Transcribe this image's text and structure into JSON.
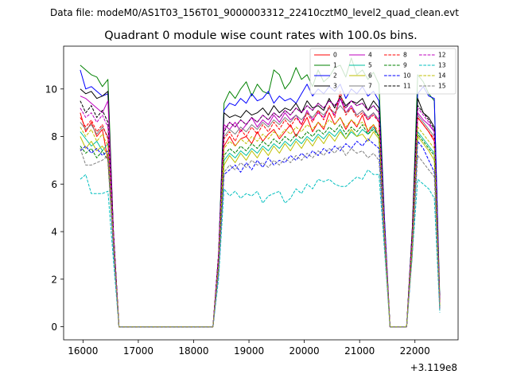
{
  "suptitle": "Data file: modeM0/AS1T03_156T01_9000003312_22410cztM0_level2_quad_clean.evt",
  "chart_data": {
    "type": "line",
    "title": "Quadrant 0 module wise count rates with 100.0s bins.",
    "xlabel": "",
    "ylabel": "",
    "x_offset_label": "+3.119e8",
    "xlim": [
      15650,
      22780
    ],
    "ylim": [
      -0.55,
      11.8
    ],
    "xticks": [
      16000,
      17000,
      18000,
      19000,
      20000,
      21000,
      22000
    ],
    "xtick_labels": [
      "16000",
      "17000",
      "18000",
      "19000",
      "20000",
      "21000",
      "22000"
    ],
    "yticks": [
      0,
      2,
      4,
      6,
      8,
      10
    ],
    "ytick_labels": [
      "0",
      "2",
      "4",
      "6",
      "8",
      "10"
    ],
    "legend_position": "top-right",
    "x": [
      15950,
      16050,
      16150,
      16250,
      16350,
      16450,
      16550,
      16650,
      16750,
      16850,
      16950,
      17050,
      17150,
      17250,
      17350,
      17450,
      17550,
      17650,
      17750,
      17850,
      17950,
      18050,
      18150,
      18250,
      18350,
      18450,
      18550,
      18650,
      18750,
      18850,
      18950,
      19050,
      19150,
      19250,
      19350,
      19450,
      19550,
      19650,
      19750,
      19850,
      19950,
      20050,
      20150,
      20250,
      20350,
      20450,
      20550,
      20650,
      20750,
      20850,
      20950,
      21050,
      21150,
      21250,
      21350,
      21450,
      21550,
      21650,
      21750,
      21850,
      21950,
      22050,
      22150,
      22250,
      22350,
      22450
    ],
    "series": [
      {
        "name": "0",
        "color": "#ff0000",
        "dash": "solid",
        "values": [
          9.0,
          8.2,
          8.6,
          8.0,
          8.3,
          7.0,
          3.5,
          0,
          0,
          0,
          0,
          0,
          0,
          0,
          0,
          0,
          0,
          0,
          0,
          0,
          0,
          0,
          0,
          0,
          0,
          2.5,
          7.6,
          8.0,
          7.6,
          7.9,
          8.0,
          7.7,
          8.2,
          7.8,
          8.1,
          8.3,
          7.9,
          8.2,
          8.5,
          8.0,
          8.4,
          8.8,
          8.2,
          8.6,
          8.3,
          9.0,
          8.5,
          8.8,
          8.3,
          8.7,
          8.4,
          8.9,
          8.2,
          8.5,
          8.0,
          4.0,
          0,
          0,
          0,
          0,
          3.5,
          8.8,
          8.5,
          8.2,
          7.8,
          1.0
        ]
      },
      {
        "name": "1",
        "color": "#008000",
        "dash": "solid",
        "values": [
          11.0,
          10.8,
          10.6,
          10.5,
          10.1,
          10.4,
          4.0,
          0,
          0,
          0,
          0,
          0,
          0,
          0,
          0,
          0,
          0,
          0,
          0,
          0,
          0,
          0,
          0,
          0,
          0,
          3.0,
          9.4,
          9.9,
          9.6,
          10.0,
          10.3,
          9.7,
          10.2,
          9.9,
          9.8,
          10.8,
          10.6,
          10.0,
          10.3,
          10.9,
          10.4,
          10.6,
          10.1,
          10.8,
          10.3,
          10.5,
          10.9,
          11.0,
          10.5,
          11.3,
          10.6,
          10.8,
          10.4,
          10.7,
          10.2,
          4.5,
          0,
          0,
          0,
          0,
          4.0,
          10.6,
          10.3,
          9.8,
          9.5,
          1.2
        ]
      },
      {
        "name": "2",
        "color": "#0000ff",
        "dash": "solid",
        "values": [
          10.8,
          10.0,
          10.1,
          9.9,
          9.7,
          9.8,
          4.0,
          0,
          0,
          0,
          0,
          0,
          0,
          0,
          0,
          0,
          0,
          0,
          0,
          0,
          0,
          0,
          0,
          0,
          0,
          3.0,
          9.1,
          9.4,
          9.3,
          9.6,
          9.4,
          9.8,
          9.5,
          9.6,
          9.9,
          9.4,
          9.7,
          9.5,
          9.6,
          9.4,
          9.8,
          10.2,
          9.7,
          10.0,
          9.8,
          10.1,
          9.9,
          10.2,
          9.6,
          10.0,
          9.8,
          10.1,
          9.7,
          9.9,
          9.5,
          4.5,
          0,
          0,
          0,
          0,
          4.0,
          9.8,
          10.1,
          9.7,
          9.6,
          1.0
        ]
      },
      {
        "name": "3",
        "color": "#000000",
        "dash": "solid",
        "values": [
          10.0,
          9.8,
          9.9,
          9.6,
          9.7,
          9.9,
          4.0,
          0,
          0,
          0,
          0,
          0,
          0,
          0,
          0,
          0,
          0,
          0,
          0,
          0,
          0,
          0,
          0,
          0,
          0,
          3.0,
          9.0,
          8.8,
          8.9,
          8.8,
          9.1,
          8.9,
          9.0,
          9.2,
          8.9,
          9.3,
          9.0,
          9.2,
          9.1,
          9.4,
          9.0,
          9.5,
          9.2,
          9.3,
          9.1,
          9.6,
          9.2,
          9.7,
          9.3,
          9.5,
          9.4,
          9.6,
          9.1,
          9.5,
          9.2,
          4.0,
          0,
          0,
          0,
          0,
          4.0,
          9.6,
          9.0,
          8.8,
          8.4,
          1.0
        ]
      },
      {
        "name": "4",
        "color": "#bf00bf",
        "dash": "solid",
        "values": [
          9.7,
          9.6,
          9.4,
          9.2,
          9.0,
          9.5,
          4.0,
          0,
          0,
          0,
          0,
          0,
          0,
          0,
          0,
          0,
          0,
          0,
          0,
          0,
          0,
          0,
          0,
          0,
          0,
          3.0,
          8.5,
          8.3,
          8.6,
          8.2,
          8.5,
          8.8,
          8.4,
          8.7,
          8.5,
          8.9,
          8.6,
          9.0,
          8.7,
          8.9,
          8.5,
          9.1,
          8.7,
          9.0,
          8.8,
          9.2,
          8.9,
          9.6,
          9.0,
          9.3,
          8.9,
          9.1,
          8.7,
          9.0,
          8.6,
          4.0,
          0,
          0,
          0,
          0,
          3.5,
          9.0,
          8.7,
          8.5,
          8.2,
          1.0
        ]
      },
      {
        "name": "5",
        "color": "#00bf9f",
        "dash": "solid",
        "values": [
          8.2,
          7.9,
          7.6,
          7.8,
          7.4,
          7.7,
          3.5,
          0,
          0,
          0,
          0,
          0,
          0,
          0,
          0,
          0,
          0,
          0,
          0,
          0,
          0,
          0,
          0,
          0,
          0,
          2.5,
          7.0,
          7.3,
          7.1,
          7.4,
          7.2,
          7.5,
          7.3,
          7.6,
          7.4,
          7.7,
          7.5,
          7.8,
          7.6,
          7.9,
          7.7,
          8.0,
          7.8,
          8.1,
          7.9,
          8.2,
          8.0,
          8.3,
          7.9,
          8.2,
          8.0,
          8.3,
          8.1,
          8.4,
          8.0,
          3.8,
          0,
          0,
          0,
          0,
          3.5,
          8.2,
          7.9,
          7.6,
          7.3,
          0.9
        ]
      },
      {
        "name": "6",
        "color": "#bfbf00",
        "dash": "solid",
        "values": [
          8.0,
          7.5,
          7.8,
          7.4,
          7.6,
          7.2,
          3.5,
          0,
          0,
          0,
          0,
          0,
          0,
          0,
          0,
          0,
          0,
          0,
          0,
          0,
          0,
          0,
          0,
          0,
          0,
          2.5,
          6.8,
          7.2,
          6.9,
          7.3,
          7.0,
          7.4,
          7.1,
          7.5,
          7.2,
          7.6,
          7.3,
          7.7,
          7.4,
          7.8,
          7.5,
          7.9,
          7.6,
          8.0,
          7.7,
          8.1,
          7.8,
          8.2,
          7.9,
          8.3,
          8.0,
          8.1,
          7.8,
          8.2,
          7.9,
          3.8,
          0,
          0,
          0,
          0,
          3.2,
          8.0,
          7.7,
          7.4,
          7.0,
          0.8
        ]
      },
      {
        "name": "7",
        "color": "#7f7f7f",
        "dash": "solid",
        "values": [
          8.6,
          8.3,
          8.5,
          8.1,
          8.4,
          8.0,
          3.8,
          0,
          0,
          0,
          0,
          0,
          0,
          0,
          0,
          0,
          0,
          0,
          0,
          0,
          0,
          0,
          0,
          0,
          0,
          2.8,
          8.0,
          8.3,
          8.1,
          8.4,
          8.2,
          8.5,
          8.3,
          8.6,
          8.4,
          8.7,
          8.5,
          8.8,
          8.6,
          8.9,
          8.7,
          9.0,
          8.8,
          9.1,
          8.9,
          9.2,
          9.0,
          9.3,
          9.0,
          9.2,
          8.9,
          9.1,
          8.8,
          9.0,
          8.7,
          4.0,
          0,
          0,
          0,
          0,
          3.5,
          8.9,
          8.6,
          8.3,
          8.0,
          0.9
        ]
      },
      {
        "name": "8",
        "color": "#ff0000",
        "dash": "dashed",
        "values": [
          8.8,
          8.4,
          8.7,
          8.2,
          8.5,
          7.9,
          3.8,
          0,
          0,
          0,
          0,
          0,
          0,
          0,
          0,
          0,
          0,
          0,
          0,
          0,
          0,
          0,
          0,
          0,
          0,
          2.8,
          7.9,
          8.2,
          7.8,
          8.3,
          8.0,
          8.4,
          8.1,
          8.5,
          8.2,
          8.6,
          8.3,
          8.7,
          8.4,
          8.8,
          8.5,
          9.0,
          8.6,
          9.1,
          8.7,
          9.3,
          8.8,
          9.9,
          8.9,
          9.2,
          8.8,
          9.0,
          8.7,
          8.9,
          8.6,
          4.0,
          0,
          0,
          0,
          0,
          3.5,
          8.8,
          8.5,
          8.2,
          7.9,
          0.9
        ]
      },
      {
        "name": "9",
        "color": "#008000",
        "dash": "dashed",
        "values": [
          7.6,
          7.3,
          7.5,
          7.1,
          7.4,
          7.0,
          3.3,
          0,
          0,
          0,
          0,
          0,
          0,
          0,
          0,
          0,
          0,
          0,
          0,
          0,
          0,
          0,
          0,
          0,
          0,
          2.5,
          7.2,
          7.5,
          7.3,
          7.6,
          7.4,
          7.7,
          7.5,
          7.8,
          7.6,
          7.9,
          7.7,
          8.0,
          7.8,
          8.1,
          7.9,
          8.2,
          8.0,
          8.3,
          8.1,
          8.4,
          8.2,
          8.5,
          8.1,
          8.4,
          8.2,
          8.5,
          8.1,
          8.3,
          8.0,
          3.8,
          0,
          0,
          0,
          0,
          3.3,
          8.1,
          7.8,
          7.5,
          7.2,
          0.8
        ]
      },
      {
        "name": "10",
        "color": "#0000ff",
        "dash": "dashed",
        "values": [
          7.4,
          7.6,
          7.3,
          7.5,
          7.2,
          7.4,
          3.3,
          0,
          0,
          0,
          0,
          0,
          0,
          0,
          0,
          0,
          0,
          0,
          0,
          0,
          0,
          0,
          0,
          0,
          0,
          2.3,
          6.4,
          6.6,
          6.8,
          6.5,
          6.9,
          6.6,
          7.0,
          6.7,
          7.1,
          6.8,
          7.0,
          6.9,
          7.2,
          7.0,
          7.3,
          7.1,
          7.4,
          7.2,
          7.5,
          7.3,
          7.6,
          7.4,
          7.7,
          7.5,
          7.8,
          7.6,
          7.9,
          7.7,
          7.5,
          3.6,
          0,
          0,
          0,
          0,
          3.0,
          7.8,
          7.5,
          7.0,
          6.5,
          0.7
        ]
      },
      {
        "name": "11",
        "color": "#000000",
        "dash": "dashed",
        "values": [
          9.5,
          9.0,
          9.3,
          8.8,
          9.1,
          8.6,
          4.0,
          0,
          0,
          0,
          0,
          0,
          0,
          0,
          0,
          0,
          0,
          0,
          0,
          0,
          0,
          0,
          0,
          0,
          0,
          3.0,
          8.2,
          8.6,
          8.4,
          8.7,
          8.5,
          8.8,
          8.6,
          8.9,
          8.7,
          9.0,
          8.8,
          9.1,
          8.9,
          9.2,
          9.0,
          9.3,
          9.1,
          9.4,
          9.2,
          9.5,
          9.3,
          9.6,
          9.2,
          9.5,
          9.3,
          9.4,
          9.1,
          9.3,
          9.0,
          4.2,
          0,
          0,
          0,
          0,
          3.8,
          9.3,
          9.0,
          8.7,
          8.3,
          1.0
        ]
      },
      {
        "name": "12",
        "color": "#bf00bf",
        "dash": "dashed",
        "values": [
          9.2,
          8.8,
          9.0,
          8.6,
          8.9,
          8.4,
          4.0,
          0,
          0,
          0,
          0,
          0,
          0,
          0,
          0,
          0,
          0,
          0,
          0,
          0,
          0,
          0,
          0,
          0,
          0,
          3.0,
          8.3,
          8.6,
          8.4,
          8.7,
          8.5,
          8.8,
          8.6,
          8.9,
          8.7,
          9.0,
          8.8,
          9.1,
          8.9,
          9.2,
          9.0,
          9.3,
          9.1,
          9.4,
          9.2,
          9.5,
          9.3,
          9.6,
          9.2,
          9.5,
          9.3,
          9.4,
          9.1,
          9.3,
          9.0,
          4.2,
          0,
          0,
          0,
          0,
          3.8,
          9.2,
          8.9,
          8.6,
          8.2,
          1.0
        ]
      },
      {
        "name": "13",
        "color": "#00bfbf",
        "dash": "dashed",
        "values": [
          6.2,
          6.4,
          5.6,
          5.6,
          5.6,
          5.7,
          2.8,
          0,
          0,
          0,
          0,
          0,
          0,
          0,
          0,
          0,
          0,
          0,
          0,
          0,
          0,
          0,
          0,
          0,
          0,
          2.0,
          5.8,
          5.5,
          5.7,
          5.4,
          5.6,
          5.5,
          5.7,
          5.2,
          5.5,
          5.6,
          5.7,
          5.2,
          5.4,
          5.8,
          5.6,
          6.0,
          5.8,
          6.2,
          6.1,
          6.2,
          6.0,
          5.9,
          5.9,
          6.1,
          6.3,
          6.2,
          6.6,
          6.4,
          6.4,
          3.2,
          0,
          0,
          0,
          0,
          3.0,
          6.2,
          6.0,
          5.8,
          5.4,
          0.6
        ]
      },
      {
        "name": "14",
        "color": "#bfbf00",
        "dash": "dashed",
        "values": [
          8.4,
          8.0,
          8.3,
          7.8,
          8.1,
          7.6,
          3.6,
          0,
          0,
          0,
          0,
          0,
          0,
          0,
          0,
          0,
          0,
          0,
          0,
          0,
          0,
          0,
          0,
          0,
          0,
          2.6,
          7.5,
          7.8,
          7.6,
          7.9,
          7.7,
          8.0,
          7.8,
          8.1,
          7.9,
          8.2,
          8.0,
          8.3,
          8.1,
          8.4,
          8.2,
          8.5,
          8.3,
          8.6,
          8.4,
          8.7,
          8.5,
          8.8,
          8.4,
          8.7,
          8.5,
          8.6,
          8.3,
          8.5,
          8.2,
          3.9,
          0,
          0,
          0,
          0,
          3.4,
          8.4,
          8.1,
          7.8,
          7.5,
          0.9
        ]
      },
      {
        "name": "15",
        "color": "#7f7f7f",
        "dash": "dashed",
        "values": [
          7.5,
          6.8,
          6.8,
          6.9,
          7.0,
          7.2,
          3.3,
          0,
          0,
          0,
          0,
          0,
          0,
          0,
          0,
          0,
          0,
          0,
          0,
          0,
          0,
          0,
          0,
          0,
          0,
          2.3,
          6.5,
          6.8,
          6.6,
          6.9,
          6.7,
          7.0,
          6.8,
          6.9,
          6.7,
          7.0,
          6.8,
          7.1,
          6.9,
          7.2,
          7.0,
          7.3,
          7.1,
          7.4,
          7.2,
          7.5,
          7.3,
          7.6,
          7.2,
          7.5,
          7.3,
          7.4,
          7.1,
          7.3,
          7.0,
          3.4,
          0,
          0,
          0,
          0,
          3.0,
          7.2,
          6.9,
          6.6,
          6.3,
          0.7
        ]
      }
    ]
  }
}
